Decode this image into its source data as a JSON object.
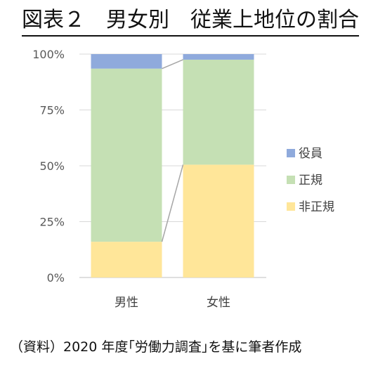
{
  "title": "図表２　男女別　従業上地位の割合",
  "source": "（資料）2020 年度｢労働力調査｣を基に筆者作成",
  "chart_data": {
    "type": "bar",
    "stacked": true,
    "percent": true,
    "categories": [
      "男性",
      "女性"
    ],
    "series": [
      {
        "name": "非正規",
        "color": "#FFE699",
        "values": [
          16,
          50.5
        ]
      },
      {
        "name": "正規",
        "color": "#C5E0B4",
        "values": [
          77.5,
          47
        ]
      },
      {
        "name": "役員",
        "color": "#8FAADC",
        "values": [
          6.5,
          2.5
        ]
      }
    ],
    "yticks": [
      "0%",
      "25%",
      "50%",
      "75%",
      "100%"
    ],
    "ylim": [
      0,
      100
    ],
    "legend_position": "right",
    "series_lines": true,
    "gridlines": true
  }
}
